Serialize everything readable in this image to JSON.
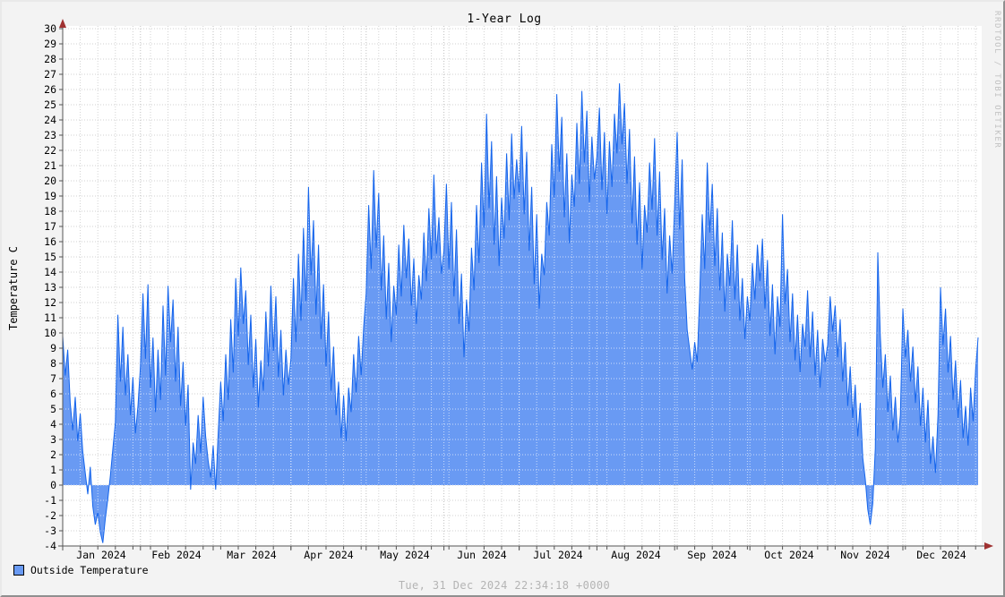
{
  "header": {
    "title": "1-Year Log"
  },
  "watermark": "RRDTOOL / TOBI OETIKER",
  "footer": {
    "timestamp": "Tue, 31 Dec 2024 22:34:18 +0000"
  },
  "colors": {
    "area": "#699af3",
    "line": "#1565ec",
    "grid_minor": "#d2d2d2",
    "grid_month": "#bfbfbf",
    "grid_on_area": "rgba(255,255,255,0.65)",
    "axis": "#555555",
    "arrow": "#a03232",
    "background": "#f3f3f3",
    "plot_background": "#ffffff",
    "text": "#000000",
    "footer_text": "#b4b4b4",
    "watermark_text": "#c2c2c2"
  },
  "chart_data": {
    "type": "area",
    "title": "1-Year Log",
    "xlabel": "",
    "ylabel": "Temperature C",
    "ylim": [
      -4,
      30
    ],
    "y_tick_step": 1,
    "grid": true,
    "legend_position": "bottom-left",
    "x_tick_labels": [
      "Jan 2024",
      "Feb 2024",
      "Mar 2024",
      "Apr 2024",
      "May 2024",
      "Jun 2024",
      "Jul 2024",
      "Aug 2024",
      "Sep 2024",
      "Oct 2024",
      "Nov 2024",
      "Dec 2024"
    ],
    "y_tick_labels": [
      "30",
      "29",
      "28",
      "27",
      "26",
      "25",
      "24",
      "23",
      "22",
      "21",
      "20",
      "19",
      "18",
      "17",
      "16",
      "15",
      "14",
      "13",
      "12",
      "11",
      "10",
      "9",
      "8",
      "7",
      "6",
      "5",
      "4",
      "3",
      "2",
      "1",
      "0",
      "-1",
      "-2",
      "-3",
      "-4"
    ],
    "month_start_days": [
      0,
      31,
      60,
      91,
      121,
      152,
      182,
      213,
      244,
      274,
      305,
      335
    ],
    "days_in_year": 366,
    "x_minor_grid_interval_days": 7,
    "series": [
      {
        "name": "Outside Temperature",
        "unit": "day of year 2024, one value per day",
        "values": [
          9.8,
          7.2,
          8.9,
          5.4,
          3.6,
          5.8,
          2.9,
          4.7,
          2.2,
          0.8,
          -0.6,
          1.2,
          -1.4,
          -2.6,
          -1.8,
          -3.1,
          -3.8,
          -2.2,
          -0.9,
          0.6,
          2.4,
          4.1,
          11.2,
          6.8,
          10.4,
          5.9,
          8.6,
          4.6,
          7.1,
          3.4,
          5.2,
          7.8,
          12.6,
          8.3,
          13.2,
          6.4,
          9.7,
          4.8,
          8.9,
          5.6,
          11.8,
          7.2,
          13.1,
          9.4,
          12.2,
          6.8,
          10.4,
          5.2,
          8.1,
          3.9,
          6.6,
          -0.3,
          2.8,
          1.4,
          4.6,
          2.1,
          5.8,
          3.2,
          1.6,
          0.5,
          2.6,
          -0.3,
          3.4,
          6.8,
          4.2,
          8.6,
          5.6,
          10.9,
          7.4,
          13.6,
          9.8,
          14.3,
          10.6,
          12.8,
          7.9,
          11.2,
          6.4,
          9.6,
          5.1,
          8.2,
          6.2,
          11.4,
          7.8,
          13.1,
          8.8,
          12.4,
          7.1,
          10.2,
          5.9,
          8.9,
          6.6,
          8.3,
          13.6,
          9.4,
          15.2,
          10.8,
          16.9,
          12.1,
          19.6,
          13.8,
          17.4,
          11.2,
          15.8,
          9.6,
          13.2,
          7.8,
          11.4,
          6.2,
          9.1,
          4.6,
          6.8,
          3.1,
          5.9,
          2.9,
          6.4,
          4.8,
          8.6,
          6.1,
          9.8,
          7.2,
          10.4,
          12.6,
          18.4,
          14.2,
          20.7,
          15.6,
          19.2,
          12.8,
          16.4,
          10.9,
          14.6,
          9.4,
          13.1,
          11.2,
          15.8,
          12.4,
          17.1,
          13.6,
          16.2,
          11.8,
          14.9,
          10.6,
          13.8,
          12.2,
          16.6,
          13.4,
          18.2,
          14.8,
          20.4,
          15.2,
          17.6,
          13.9,
          15.4,
          19.8,
          14.2,
          18.6,
          12.4,
          16.8,
          10.6,
          13.9,
          8.4,
          12.2,
          10.1,
          15.6,
          12.8,
          18.4,
          14.6,
          21.2,
          16.9,
          24.4,
          18.2,
          22.6,
          15.8,
          20.3,
          14.4,
          18.9,
          16.2,
          21.8,
          17.4,
          23.1,
          18.8,
          21.4,
          19.2,
          23.6,
          17.8,
          21.9,
          15.4,
          19.6,
          13.2,
          17.8,
          11.6,
          15.2,
          13.8,
          18.6,
          16.4,
          22.4,
          18.9,
          25.7,
          20.6,
          24.2,
          17.6,
          21.8,
          15.9,
          20.4,
          18.3,
          23.8,
          19.8,
          25.9,
          21.2,
          24.6,
          18.6,
          22.9,
          20.1,
          21.6,
          24.8,
          19.4,
          23.2,
          17.8,
          22.6,
          19.6,
          24.4,
          21.8,
          26.4,
          22.4,
          25.1,
          19.8,
          23.4,
          17.2,
          21.6,
          15.8,
          19.9,
          14.2,
          18.4,
          16.6,
          21.2,
          18.1,
          22.8,
          16.4,
          20.6,
          14.8,
          18.2,
          12.6,
          16.4,
          13.9,
          18.4,
          23.2,
          16.8,
          21.4,
          13.6,
          10.2,
          8.9,
          7.6,
          9.4,
          8.1,
          12.6,
          17.8,
          14.2,
          21.2,
          16.6,
          19.8,
          14.4,
          18.2,
          12.8,
          16.6,
          11.4,
          15.2,
          13.1,
          17.4,
          12.2,
          15.8,
          10.8,
          13.6,
          9.6,
          12.4,
          10.8,
          14.6,
          12.2,
          15.8,
          13.4,
          16.2,
          11.6,
          14.8,
          9.8,
          13.2,
          8.6,
          12.4,
          10.4,
          17.8,
          11.9,
          14.2,
          9.4,
          12.6,
          8.2,
          11.2,
          7.4,
          10.6,
          9.1,
          12.8,
          8.4,
          11.4,
          7.2,
          10.2,
          6.4,
          9.6,
          8.1,
          9.2,
          12.4,
          10.1,
          11.8,
          8.4,
          10.9,
          6.8,
          9.4,
          5.2,
          7.8,
          4.4,
          6.6,
          3.2,
          5.4,
          1.8,
          0.4,
          -1.6,
          -2.6,
          -1.2,
          2.4,
          15.3,
          9.8,
          6.4,
          8.6,
          4.8,
          7.2,
          3.6,
          5.8,
          2.8,
          4.6,
          11.6,
          8.4,
          10.2,
          6.8,
          9.1,
          5.4,
          7.8,
          3.9,
          6.4,
          2.8,
          5.6,
          1.4,
          3.2,
          0.8,
          4.6,
          13.0,
          9.2,
          11.6,
          7.4,
          9.8,
          5.6,
          8.2,
          4.4,
          6.9,
          3.1,
          5.2,
          2.6,
          6.4,
          4.2,
          7.6,
          9.7
        ]
      }
    ]
  }
}
